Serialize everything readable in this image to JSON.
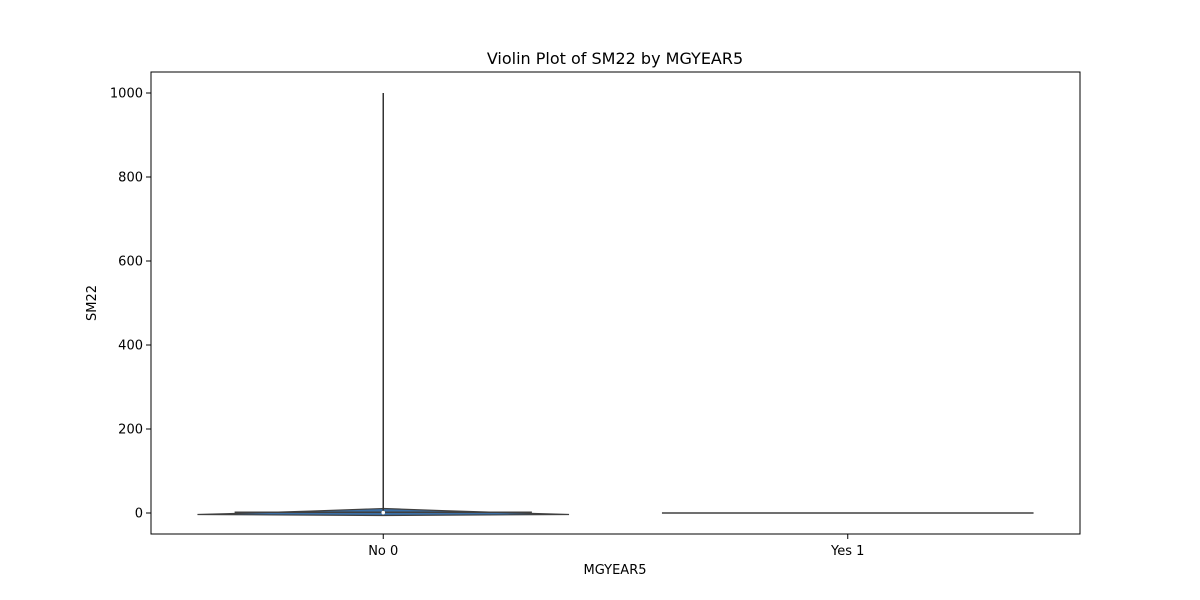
{
  "chart_data": {
    "type": "violin",
    "title": "Violin Plot of SM22 by MGYEAR5",
    "xlabel": "MGYEAR5",
    "ylabel": "SM22",
    "categories": [
      "No 0",
      "Yes 1"
    ],
    "ylim": [
      -50,
      1050
    ],
    "yticks": [
      0,
      200,
      400,
      600,
      800,
      1000
    ],
    "grid": false,
    "series_color": "#3b6fa6",
    "violins": [
      {
        "category": "No 0",
        "min": 0,
        "max": 1000,
        "median": 1,
        "q1": 0,
        "q3": 2
      },
      {
        "category": "Yes 1",
        "min": 0,
        "max": 0,
        "median": 0,
        "q1": 0,
        "q3": 0
      }
    ]
  }
}
